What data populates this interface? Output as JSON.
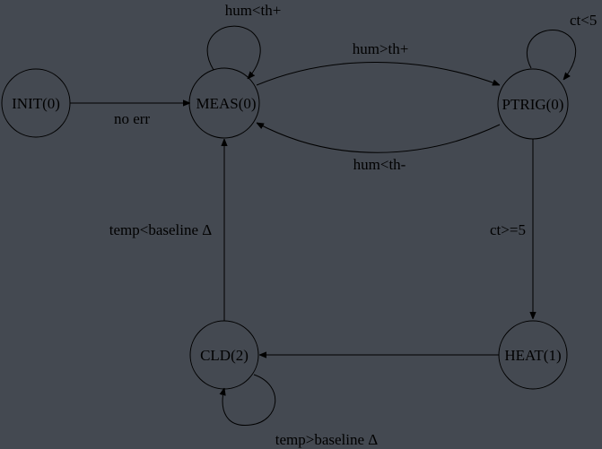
{
  "colors": {
    "background": "#444951",
    "stroke": "#000000",
    "text": "#000000"
  },
  "states": {
    "init": "INIT(0)",
    "meas": "MEAS(0)",
    "ptrig": "PTRIG(0)",
    "cld": "CLD(2)",
    "heat": "HEAT(1)"
  },
  "transitions": {
    "init_to_meas": "no err",
    "meas_self": "hum<th+",
    "meas_to_ptrig": "hum>th+",
    "ptrig_to_meas": "hum<th-",
    "ptrig_self": "ct<5",
    "ptrig_to_heat": "ct>=5",
    "heat_to_cld": "",
    "cld_self": "temp>baseline Δ",
    "cld_to_meas": "temp<baseline Δ"
  }
}
